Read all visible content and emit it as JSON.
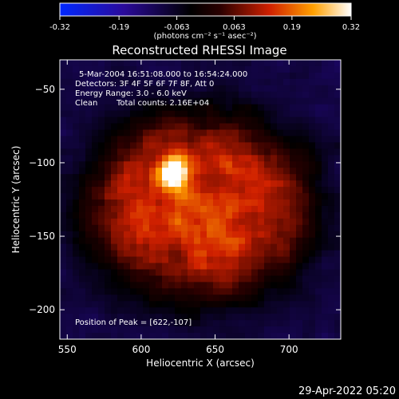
{
  "colorbar": {
    "ticks": [
      "-0.32",
      "-0.19",
      "-0.063",
      "0.063",
      "0.19",
      "0.32"
    ],
    "tick_values": [
      -0.32,
      -0.19,
      -0.063,
      0.063,
      0.19,
      0.32
    ],
    "range": [
      -0.32,
      0.32
    ],
    "unit_label": "(photons cm⁻² s⁻¹ asec⁻²)"
  },
  "footer": {
    "timestamp": "29-Apr-2022 05:20"
  },
  "chart_data": {
    "type": "heatmap",
    "title": "Reconstructed RHESSI Image",
    "xlabel": "Heliocentric X (arcsec)",
    "ylabel": "Heliocentric Y (arcsec)",
    "xlim": [
      545,
      735
    ],
    "ylim": [
      -220,
      -30
    ],
    "xticks": [
      550,
      600,
      650,
      700
    ],
    "yticks": [
      -50,
      -100,
      -150,
      -200
    ],
    "annotations": [
      "5-Mar-2004 16:51:08.000 to 16:54:24.000",
      "Detectors: 3F 4F 5F 6F 7F 8F, Att 0",
      "Energy Range: 3.0 - 6.0 keV",
      "Clean",
      "Total counts: 2.16E+04"
    ],
    "peak_label": "Position of Peak = [622,-107]",
    "peak": [
      622,
      -107
    ],
    "peak_value": 0.32,
    "colormap": "RHESSI blue-black-red-yellow-white",
    "colors": {
      "background": "#000000",
      "text": "#ffffff"
    }
  }
}
